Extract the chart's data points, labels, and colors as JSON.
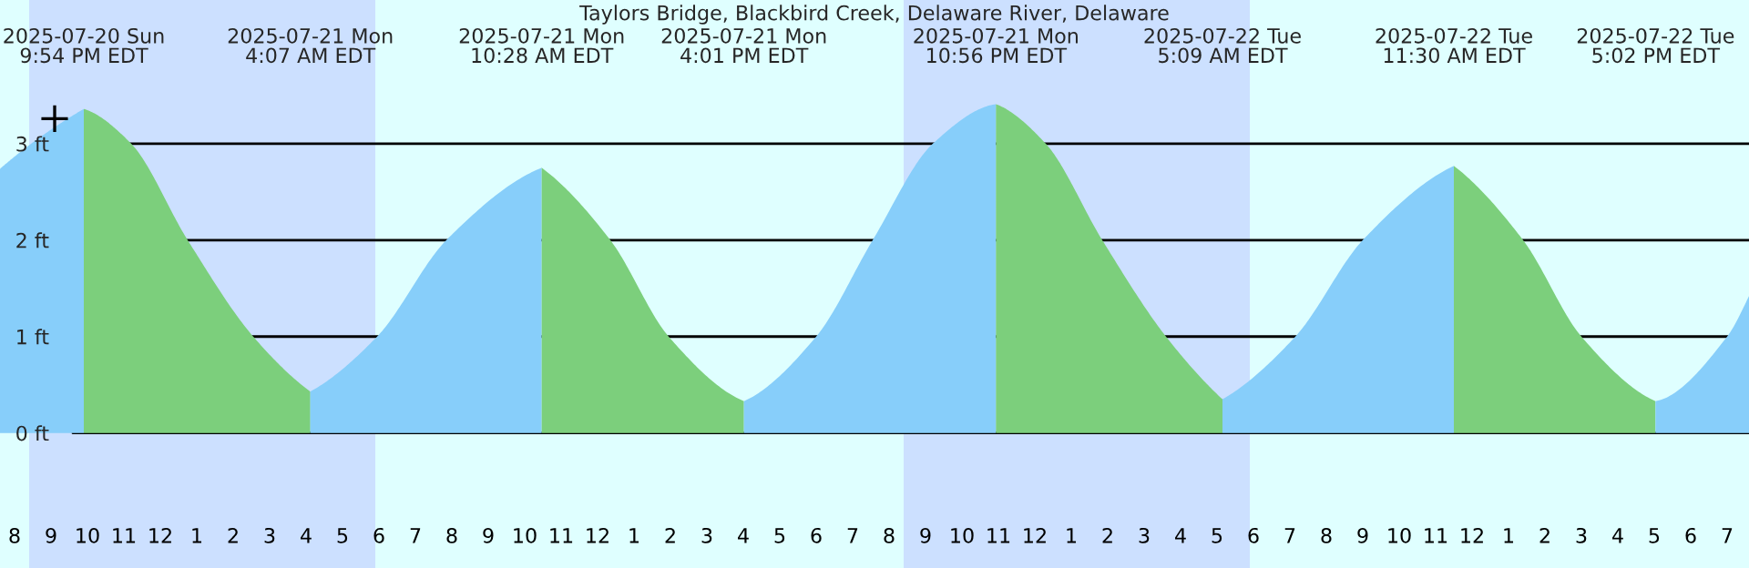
{
  "chart_data": {
    "type": "area",
    "title": "Taylors Bridge, Blackbird Creek, Delaware River, Delaware",
    "annotations": [
      "2025-07-20 Sun\n9:54 PM EDT",
      "2025-07-21 Mon\n4:07 AM EDT",
      "2025-07-21 Mon\n10:28 AM EDT",
      "2025-07-21 Mon\n4:01 PM EDT",
      "2025-07-21 Mon\n10:56 PM EDT",
      "2025-07-22 Tue\n5:09 AM EDT",
      "2025-07-22 Tue\n11:30 AM EDT",
      "2025-07-22 Tue\n5:02 PM EDT"
    ],
    "series": [
      {
        "color": "#87cefa",
        "x": [
          "2025-07-20T19:36",
          "2025-07-20T20:36",
          "2025-07-20T21:54"
        ],
        "values": [
          2.74,
          3.04,
          3.36
        ]
      },
      {
        "color": "#7ccf7c",
        "x": [
          "2025-07-20T21:54",
          "2025-07-20T23:12",
          "2025-07-21T00:45",
          "2025-07-21T02:33",
          "2025-07-21T04:07"
        ],
        "values": [
          3.36,
          3,
          2,
          1,
          0.43
        ]
      },
      {
        "color": "#87cefa",
        "x": [
          "2025-07-21T04:07",
          "2025-07-21T05:57",
          "2025-07-21T07:51",
          "2025-07-21T10:28"
        ],
        "values": [
          0.43,
          1,
          2,
          2.75
        ]
      },
      {
        "color": "#7ccf7c",
        "x": [
          "2025-07-21T10:28",
          "2025-07-21T12:21",
          "2025-07-21T13:57",
          "2025-07-21T16:01"
        ],
        "values": [
          2.75,
          2,
          1,
          0.33
        ]
      },
      {
        "color": "#87cefa",
        "x": [
          "2025-07-21T16:01",
          "2025-07-21T18:00",
          "2025-07-21T19:33",
          "2025-07-21T21:12",
          "2025-07-21T22:56"
        ],
        "values": [
          0.33,
          1,
          2,
          3,
          3.41
        ]
      },
      {
        "color": "#7ccf7c",
        "x": [
          "2025-07-21T22:56",
          "2025-07-22T00:18",
          "2025-07-22T01:51",
          "2025-07-22T03:36",
          "2025-07-22T05:09"
        ],
        "values": [
          3.41,
          3,
          2,
          1,
          0.35
        ]
      },
      {
        "color": "#87cefa",
        "x": [
          "2025-07-22T05:09",
          "2025-07-22T07:09",
          "2025-07-22T09:00",
          "2025-07-22T11:30"
        ],
        "values": [
          0.35,
          1,
          2,
          2.77
        ]
      },
      {
        "color": "#7ccf7c",
        "x": [
          "2025-07-22T11:30",
          "2025-07-22T13:24",
          "2025-07-22T15:00",
          "2025-07-22T17:02"
        ],
        "values": [
          2.77,
          2,
          1,
          0.33
        ]
      },
      {
        "color": "#87cefa",
        "x": [
          "2025-07-22T17:02",
          "2025-07-22T19:00",
          "2025-07-22T19:36"
        ],
        "values": [
          0.33,
          1,
          1.42
        ]
      },
      {
        "type": "scatter",
        "marker": "cross",
        "color": "#000000",
        "x": [
          "2025-07-20T21:06"
        ],
        "values": [
          3.26
        ]
      }
    ],
    "bands": [
      {
        "axis": "x",
        "from": "2025-07-20T20:24",
        "to": "2025-07-21T05:54",
        "color": "#cce0ff"
      },
      {
        "axis": "x",
        "from": "2025-07-21T20:24",
        "to": "2025-07-22T05:54",
        "color": "#cce0ff"
      }
    ],
    "xlim": [
      "2025-07-20T19:36",
      "2025-07-22T19:36"
    ],
    "ylim": [
      -1.4,
      4.49
    ],
    "yticks": [
      {
        "value": 0,
        "label": "0 ft"
      },
      {
        "value": 1,
        "label": "1 ft"
      },
      {
        "value": 2,
        "label": "2 ft"
      },
      {
        "value": 3,
        "label": "3 ft"
      }
    ],
    "xticks": [
      {
        "value": "2025-07-20T20:00",
        "label": "8"
      },
      {
        "value": "2025-07-20T21:00",
        "label": "9"
      },
      {
        "value": "2025-07-20T22:00",
        "label": "10"
      },
      {
        "value": "2025-07-20T23:00",
        "label": "11"
      },
      {
        "value": "2025-07-21T00:00",
        "label": "12"
      },
      {
        "value": "2025-07-21T01:00",
        "label": "1"
      },
      {
        "value": "2025-07-21T02:00",
        "label": "2"
      },
      {
        "value": "2025-07-21T03:00",
        "label": "3"
      },
      {
        "value": "2025-07-21T04:00",
        "label": "4"
      },
      {
        "value": "2025-07-21T05:00",
        "label": "5"
      },
      {
        "value": "2025-07-21T06:00",
        "label": "6"
      },
      {
        "value": "2025-07-21T07:00",
        "label": "7"
      },
      {
        "value": "2025-07-21T08:00",
        "label": "8"
      },
      {
        "value": "2025-07-21T09:00",
        "label": "9"
      },
      {
        "value": "2025-07-21T10:00",
        "label": "10"
      },
      {
        "value": "2025-07-21T11:00",
        "label": "11"
      },
      {
        "value": "2025-07-21T12:00",
        "label": "12"
      },
      {
        "value": "2025-07-21T13:00",
        "label": "1"
      },
      {
        "value": "2025-07-21T14:00",
        "label": "2"
      },
      {
        "value": "2025-07-21T15:00",
        "label": "3"
      },
      {
        "value": "2025-07-21T16:00",
        "label": "4"
      },
      {
        "value": "2025-07-21T17:00",
        "label": "5"
      },
      {
        "value": "2025-07-21T18:00",
        "label": "6"
      },
      {
        "value": "2025-07-21T19:00",
        "label": "7"
      },
      {
        "value": "2025-07-21T20:00",
        "label": "8"
      },
      {
        "value": "2025-07-21T21:00",
        "label": "9"
      },
      {
        "value": "2025-07-21T22:00",
        "label": "10"
      },
      {
        "value": "2025-07-21T23:00",
        "label": "11"
      },
      {
        "value": "2025-07-22T00:00",
        "label": "12"
      },
      {
        "value": "2025-07-22T01:00",
        "label": "1"
      },
      {
        "value": "2025-07-22T02:00",
        "label": "2"
      },
      {
        "value": "2025-07-22T03:00",
        "label": "3"
      },
      {
        "value": "2025-07-22T04:00",
        "label": "4"
      },
      {
        "value": "2025-07-22T05:00",
        "label": "5"
      },
      {
        "value": "2025-07-22T06:00",
        "label": "6"
      },
      {
        "value": "2025-07-22T07:00",
        "label": "7"
      },
      {
        "value": "2025-07-22T08:00",
        "label": "8"
      },
      {
        "value": "2025-07-22T09:00",
        "label": "9"
      },
      {
        "value": "2025-07-22T10:00",
        "label": "10"
      },
      {
        "value": "2025-07-22T11:00",
        "label": "11"
      },
      {
        "value": "2025-07-22T12:00",
        "label": "12"
      },
      {
        "value": "2025-07-22T13:00",
        "label": "1"
      },
      {
        "value": "2025-07-22T14:00",
        "label": "2"
      },
      {
        "value": "2025-07-22T15:00",
        "label": "3"
      },
      {
        "value": "2025-07-22T16:00",
        "label": "4"
      },
      {
        "value": "2025-07-22T17:00",
        "label": "5"
      },
      {
        "value": "2025-07-22T18:00",
        "label": "6"
      },
      {
        "value": "2025-07-22T19:00",
        "label": "7"
      }
    ],
    "grid": "y",
    "legend": false
  }
}
